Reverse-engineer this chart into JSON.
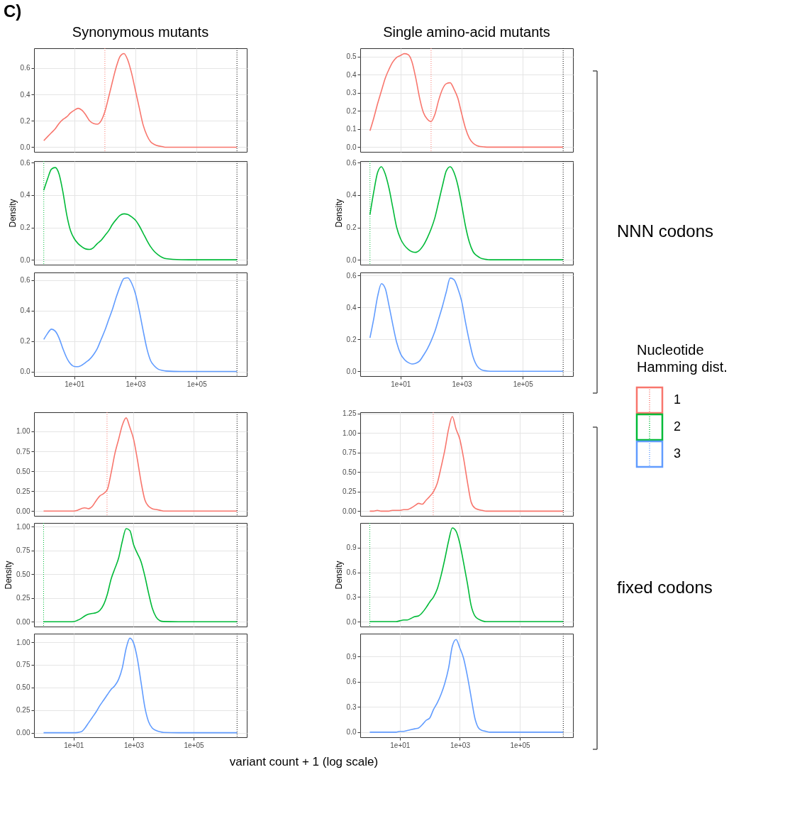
{
  "chart_data": [
    {
      "type": "line",
      "title": "Synonymous mutants",
      "log": "x",
      "grid": true,
      "tick_labels": "y",
      "xlim": [
        0.48,
        4400000
      ],
      "ylim": [
        -0.035,
        0.75
      ],
      "xticks": [
        {
          "value": 10,
          "label": null
        },
        {
          "value": 1000,
          "label": null
        },
        {
          "value": 100000,
          "label": null
        }
      ],
      "yticks": [
        {
          "value": 0,
          "label": "0.0"
        },
        0.2,
        0.4,
        0.6
      ],
      "x": [
        1,
        1.33,
        1.78,
        2.37,
        3.16,
        4.22,
        5.62,
        7.5,
        10,
        13.3,
        17.8,
        23.7,
        31.6,
        42.2,
        56.2,
        75,
        100,
        133,
        178,
        237,
        316,
        422,
        562,
        750,
        1000,
        1330,
        1780,
        2370,
        3160,
        4220,
        5620,
        7500,
        10000,
        31600,
        100000,
        316000,
        1000000,
        2100000
      ],
      "series": [
        {
          "color": "#f8766d",
          "values": [
            0.05,
            0.08,
            0.11,
            0.14,
            0.18,
            0.21,
            0.23,
            0.26,
            0.28,
            0.295,
            0.28,
            0.245,
            0.2,
            0.18,
            0.175,
            0.2,
            0.27,
            0.38,
            0.5,
            0.61,
            0.69,
            0.71,
            0.66,
            0.56,
            0.43,
            0.3,
            0.17,
            0.09,
            0.04,
            0.02,
            0.01,
            0.005,
            0,
            0,
            0,
            0,
            0,
            0
          ]
        }
      ],
      "ref_lines": [
        {
          "axis": "x",
          "value": 100,
          "color": "#f8766d",
          "line_style": "dotted"
        },
        {
          "axis": "x",
          "value": 2100000,
          "color": "#000000",
          "line_style": "dotted"
        }
      ]
    },
    {
      "type": "line",
      "title": "Single amino-acid mutants",
      "log": "x",
      "grid": true,
      "tick_labels": "y",
      "xlim": [
        0.48,
        4400000
      ],
      "ylim": [
        -0.026,
        0.545
      ],
      "xticks": [
        {
          "value": 10,
          "label": null
        },
        {
          "value": 1000,
          "label": null
        },
        {
          "value": 100000,
          "label": null
        }
      ],
      "yticks": [
        {
          "value": 0,
          "label": "0.0"
        },
        0.1,
        0.2,
        0.3,
        0.4,
        0.5
      ],
      "x": [
        1,
        1.33,
        1.78,
        2.37,
        3.16,
        4.22,
        5.62,
        7.5,
        10,
        13.3,
        17.8,
        23.7,
        31.6,
        42.2,
        56.2,
        75,
        100,
        133,
        178,
        237,
        316,
        422,
        562,
        750,
        1000,
        1330,
        1780,
        2370,
        3160,
        4220,
        5620,
        7500,
        10000,
        31600,
        100000,
        316000,
        1000000,
        2100000
      ],
      "series": [
        {
          "color": "#f8766d",
          "values": [
            0.09,
            0.16,
            0.24,
            0.31,
            0.38,
            0.43,
            0.47,
            0.495,
            0.505,
            0.515,
            0.51,
            0.47,
            0.38,
            0.27,
            0.19,
            0.155,
            0.141,
            0.18,
            0.26,
            0.32,
            0.35,
            0.355,
            0.32,
            0.27,
            0.185,
            0.105,
            0.05,
            0.022,
            0.008,
            0.003,
            0.001,
            0,
            0,
            0,
            0,
            0,
            0,
            0
          ]
        }
      ],
      "ref_lines": [
        {
          "axis": "x",
          "value": 100,
          "color": "#f8766d",
          "line_style": "dotted"
        },
        {
          "axis": "x",
          "value": 2100000,
          "color": "#000000",
          "line_style": "dotted"
        }
      ]
    },
    {
      "type": "line",
      "ylabel": "Density",
      "log": "x",
      "grid": true,
      "tick_labels": "y",
      "xlim": [
        0.48,
        4400000
      ],
      "ylim": [
        -0.03,
        0.61
      ],
      "xticks": [
        {
          "value": 10,
          "label": null
        },
        {
          "value": 1000,
          "label": null
        },
        {
          "value": 100000,
          "label": null
        }
      ],
      "yticks": [
        {
          "value": 0,
          "label": "0.0"
        },
        0.2,
        0.4,
        0.6
      ],
      "x": [
        1,
        1.33,
        1.78,
        2.37,
        3.16,
        4.22,
        5.62,
        7.5,
        10,
        13.3,
        17.8,
        23.7,
        31.6,
        42.2,
        56.2,
        75,
        100,
        133,
        178,
        237,
        316,
        422,
        562,
        750,
        1000,
        1330,
        1780,
        2370,
        3160,
        4220,
        5620,
        7500,
        10000,
        31600,
        100000,
        316000,
        1000000,
        2100000
      ],
      "series": [
        {
          "color": "#00ba38",
          "values": [
            0.43,
            0.5,
            0.56,
            0.57,
            0.53,
            0.42,
            0.28,
            0.18,
            0.13,
            0.1,
            0.08,
            0.067,
            0.064,
            0.075,
            0.1,
            0.12,
            0.15,
            0.18,
            0.22,
            0.25,
            0.275,
            0.284,
            0.28,
            0.265,
            0.245,
            0.21,
            0.165,
            0.12,
            0.08,
            0.05,
            0.03,
            0.015,
            0.007,
            0.001,
            0,
            0,
            0,
            0
          ]
        }
      ],
      "ref_lines": [
        {
          "axis": "x",
          "value": 1,
          "color": "#00ba38",
          "line_style": "dotted"
        },
        {
          "axis": "x",
          "value": 2100000,
          "color": "#000000",
          "line_style": "dotted"
        }
      ]
    },
    {
      "type": "line",
      "ylabel": "Density",
      "log": "x",
      "grid": true,
      "tick_labels": "y",
      "xlim": [
        0.48,
        4400000
      ],
      "ylim": [
        -0.03,
        0.61
      ],
      "xticks": [
        {
          "value": 10,
          "label": null
        },
        {
          "value": 1000,
          "label": null
        },
        {
          "value": 100000,
          "label": null
        }
      ],
      "yticks": [
        {
          "value": 0,
          "label": "0.0"
        },
        0.2,
        0.4,
        0.6
      ],
      "x": [
        1,
        1.33,
        1.78,
        2.37,
        3.16,
        4.22,
        5.62,
        7.5,
        10,
        13.3,
        17.8,
        23.7,
        31.6,
        42.2,
        56.2,
        75,
        100,
        133,
        178,
        237,
        316,
        422,
        562,
        750,
        1000,
        1330,
        1780,
        2370,
        3160,
        4220,
        5620,
        7500,
        10000,
        31600,
        100000,
        316000,
        1000000,
        2100000
      ],
      "series": [
        {
          "color": "#00ba38",
          "values": [
            0.28,
            0.42,
            0.54,
            0.575,
            0.53,
            0.44,
            0.32,
            0.2,
            0.13,
            0.09,
            0.065,
            0.05,
            0.046,
            0.06,
            0.09,
            0.135,
            0.19,
            0.26,
            0.36,
            0.46,
            0.55,
            0.575,
            0.54,
            0.46,
            0.34,
            0.21,
            0.11,
            0.05,
            0.025,
            0.01,
            0.004,
            0.001,
            0,
            0,
            0,
            0,
            0,
            0
          ]
        }
      ],
      "ref_lines": [
        {
          "axis": "x",
          "value": 1,
          "color": "#00ba38",
          "line_style": "dotted"
        },
        {
          "axis": "x",
          "value": 2100000,
          "color": "#000000",
          "line_style": "dotted"
        }
      ]
    },
    {
      "type": "line",
      "log": "x",
      "grid": true,
      "xlim": [
        0.48,
        4400000
      ],
      "ylim": [
        -0.03,
        0.65
      ],
      "xticks": [
        {
          "value": 10,
          "label": "1e+01"
        },
        {
          "value": 1000,
          "label": "1e+03"
        },
        {
          "value": 100000,
          "label": "1e+05"
        }
      ],
      "yticks": [
        {
          "value": 0,
          "label": "0.0"
        },
        0.2,
        0.4,
        0.6
      ],
      "x": [
        1,
        1.33,
        1.78,
        2.37,
        3.16,
        4.22,
        5.62,
        7.5,
        10,
        13.3,
        17.8,
        23.7,
        31.6,
        42.2,
        56.2,
        75,
        100,
        133,
        178,
        237,
        316,
        422,
        562,
        750,
        1000,
        1330,
        1780,
        2370,
        3160,
        4220,
        5620,
        7500,
        10000,
        31600,
        100000,
        316000,
        1000000,
        2100000
      ],
      "series": [
        {
          "color": "#619cff",
          "values": [
            0.21,
            0.25,
            0.278,
            0.265,
            0.22,
            0.15,
            0.09,
            0.05,
            0.033,
            0.032,
            0.042,
            0.06,
            0.08,
            0.11,
            0.15,
            0.21,
            0.27,
            0.34,
            0.41,
            0.49,
            0.56,
            0.61,
            0.615,
            0.58,
            0.51,
            0.4,
            0.27,
            0.15,
            0.07,
            0.035,
            0.015,
            0.007,
            0.003,
            0,
            0,
            0,
            0,
            0
          ]
        }
      ],
      "ref_lines": [
        {
          "axis": "x",
          "value": 2100000,
          "color": "#000000",
          "line_style": "dotted"
        }
      ]
    },
    {
      "type": "line",
      "log": "x",
      "grid": true,
      "xlim": [
        0.48,
        4400000
      ],
      "ylim": [
        -0.03,
        0.62
      ],
      "xticks": [
        {
          "value": 10,
          "label": "1e+01"
        },
        {
          "value": 1000,
          "label": "1e+03"
        },
        {
          "value": 100000,
          "label": "1e+05"
        }
      ],
      "yticks": [
        {
          "value": 0,
          "label": "0.0"
        },
        0.2,
        0.4,
        0.6
      ],
      "x": [
        1,
        1.33,
        1.78,
        2.37,
        3.16,
        4.22,
        5.62,
        7.5,
        10,
        13.3,
        17.8,
        23.7,
        31.6,
        42.2,
        56.2,
        75,
        100,
        133,
        178,
        237,
        316,
        422,
        562,
        750,
        1000,
        1330,
        1780,
        2370,
        3160,
        4220,
        5620,
        7500,
        10000,
        31600,
        100000,
        316000,
        1000000,
        2100000
      ],
      "series": [
        {
          "color": "#619cff",
          "values": [
            0.21,
            0.33,
            0.47,
            0.55,
            0.52,
            0.41,
            0.29,
            0.18,
            0.11,
            0.075,
            0.055,
            0.046,
            0.05,
            0.065,
            0.1,
            0.14,
            0.19,
            0.25,
            0.33,
            0.41,
            0.5,
            0.585,
            0.575,
            0.52,
            0.44,
            0.31,
            0.19,
            0.09,
            0.035,
            0.012,
            0.004,
            0.001,
            0,
            0,
            0,
            0,
            0,
            0
          ]
        }
      ],
      "ref_lines": [
        {
          "axis": "x",
          "value": 2100000,
          "color": "#000000",
          "line_style": "dotted"
        }
      ]
    },
    {
      "type": "line",
      "log": "x",
      "grid": true,
      "tick_labels": "y",
      "xlim": [
        0.48,
        5900000
      ],
      "ylim": [
        -0.06,
        1.24
      ],
      "xticks": [
        {
          "value": 10,
          "label": null
        },
        {
          "value": 1000,
          "label": null
        },
        {
          "value": 100000,
          "label": null
        }
      ],
      "yticks": [
        {
          "value": 0,
          "label": "0.00"
        },
        0.25,
        {
          "value": 0.5,
          "label": "0.50"
        },
        0.75,
        {
          "value": 1,
          "label": "1.00"
        }
      ],
      "x": [
        1,
        1.33,
        1.78,
        2.37,
        3.16,
        4.22,
        5.62,
        7.5,
        10,
        13.3,
        17.8,
        23.7,
        31.6,
        42.2,
        56.2,
        75,
        100,
        133,
        178,
        237,
        316,
        422,
        562,
        750,
        1000,
        1330,
        1780,
        2370,
        3160,
        4220,
        5620,
        7500,
        10000,
        31600,
        100000,
        316000,
        1000000,
        2800000
      ],
      "series": [
        {
          "color": "#f8766d",
          "values": [
            0,
            0,
            0,
            0,
            0,
            0,
            0,
            0,
            0,
            0.01,
            0.03,
            0.04,
            0.03,
            0.06,
            0.13,
            0.19,
            0.22,
            0.27,
            0.48,
            0.72,
            0.9,
            1.08,
            1.17,
            1.05,
            0.9,
            0.65,
            0.36,
            0.14,
            0.06,
            0.03,
            0.02,
            0.01,
            0,
            0,
            0,
            0,
            0,
            0
          ]
        }
      ],
      "ref_lines": [
        {
          "axis": "x",
          "value": 130,
          "color": "#f8766d",
          "line_style": "dotted"
        },
        {
          "axis": "x",
          "value": 2800000,
          "color": "#000000",
          "line_style": "dotted"
        }
      ]
    },
    {
      "type": "line",
      "log": "x",
      "grid": true,
      "tick_labels": "y",
      "xlim": [
        0.48,
        5900000
      ],
      "ylim": [
        -0.06,
        1.265
      ],
      "xticks": [
        {
          "value": 10,
          "label": null
        },
        {
          "value": 1000,
          "label": null
        },
        {
          "value": 100000,
          "label": null
        }
      ],
      "yticks": [
        {
          "value": 0,
          "label": "0.00"
        },
        0.25,
        {
          "value": 0.5,
          "label": "0.50"
        },
        0.75,
        {
          "value": 1,
          "label": "1.00"
        },
        1.25
      ],
      "x": [
        1,
        1.33,
        1.78,
        2.37,
        3.16,
        4.22,
        5.62,
        7.5,
        10,
        13.3,
        17.8,
        23.7,
        31.6,
        42.2,
        56.2,
        75,
        100,
        133,
        178,
        237,
        316,
        422,
        562,
        750,
        1000,
        1330,
        1780,
        2370,
        3160,
        4220,
        5620,
        7500,
        10000,
        31600,
        100000,
        316000,
        1000000,
        2800000
      ],
      "series": [
        {
          "color": "#f8766d",
          "values": [
            0,
            0,
            0.01,
            0,
            0,
            0,
            0.01,
            0.01,
            0.01,
            0.02,
            0.02,
            0.04,
            0.07,
            0.1,
            0.09,
            0.14,
            0.19,
            0.25,
            0.36,
            0.56,
            0.78,
            1.05,
            1.21,
            1.05,
            0.92,
            0.68,
            0.38,
            0.12,
            0.04,
            0.02,
            0.01,
            0,
            0,
            0,
            0,
            0,
            0,
            0
          ]
        }
      ],
      "ref_lines": [
        {
          "axis": "x",
          "value": 130,
          "color": "#f8766d",
          "line_style": "dotted"
        },
        {
          "axis": "x",
          "value": 2800000,
          "color": "#000000",
          "line_style": "dotted"
        }
      ]
    },
    {
      "type": "line",
      "ylabel": "Density",
      "log": "x",
      "grid": true,
      "tick_labels": "y",
      "xlim": [
        0.48,
        5900000
      ],
      "ylim": [
        -0.05,
        1.04
      ],
      "xticks": [
        {
          "value": 10,
          "label": null
        },
        {
          "value": 1000,
          "label": null
        },
        {
          "value": 100000,
          "label": null
        }
      ],
      "yticks": [
        {
          "value": 0,
          "label": "0.00"
        },
        0.25,
        {
          "value": 0.5,
          "label": "0.50"
        },
        0.75,
        {
          "value": 1,
          "label": "1.00"
        }
      ],
      "x": [
        1,
        1.33,
        1.78,
        2.37,
        3.16,
        4.22,
        5.62,
        7.5,
        10,
        13.3,
        17.8,
        23.7,
        31.6,
        42.2,
        56.2,
        75,
        100,
        133,
        178,
        237,
        316,
        422,
        562,
        750,
        1000,
        1330,
        1780,
        2370,
        3160,
        4220,
        5620,
        7500,
        10000,
        31600,
        100000,
        316000,
        1000000,
        2800000
      ],
      "series": [
        {
          "color": "#00ba38",
          "values": [
            0,
            0,
            0,
            0,
            0,
            0,
            0,
            0,
            0.002,
            0.015,
            0.035,
            0.062,
            0.08,
            0.088,
            0.095,
            0.12,
            0.18,
            0.29,
            0.45,
            0.56,
            0.67,
            0.85,
            0.98,
            0.96,
            0.81,
            0.72,
            0.63,
            0.48,
            0.3,
            0.14,
            0.05,
            0.012,
            0.003,
            0,
            0,
            0,
            0,
            0
          ]
        }
      ],
      "ref_lines": [
        {
          "axis": "x",
          "value": 1,
          "color": "#00ba38",
          "line_style": "dotted"
        },
        {
          "axis": "x",
          "value": 2800000,
          "color": "#000000",
          "line_style": "dotted"
        }
      ]
    },
    {
      "type": "line",
      "ylabel": "Density",
      "log": "x",
      "grid": true,
      "tick_labels": "y",
      "xlim": [
        0.48,
        5900000
      ],
      "ylim": [
        -0.06,
        1.2
      ],
      "xticks": [
        {
          "value": 10,
          "label": null
        },
        {
          "value": 1000,
          "label": null
        },
        {
          "value": 100000,
          "label": null
        }
      ],
      "yticks": [
        {
          "value": 0,
          "label": "0.0"
        },
        0.3,
        0.6,
        0.9
      ],
      "x": [
        1,
        1.33,
        1.78,
        2.37,
        3.16,
        4.22,
        5.62,
        7.5,
        10,
        13.3,
        17.8,
        23.7,
        31.6,
        42.2,
        56.2,
        75,
        100,
        133,
        178,
        237,
        316,
        422,
        562,
        750,
        1000,
        1330,
        1780,
        2370,
        3160,
        4220,
        5620,
        7500,
        10000,
        31600,
        100000,
        316000,
        1000000,
        2800000
      ],
      "series": [
        {
          "color": "#00ba38",
          "values": [
            0,
            0,
            0,
            0,
            0,
            0,
            0,
            0,
            0.01,
            0.02,
            0.02,
            0.04,
            0.06,
            0.07,
            0.11,
            0.17,
            0.24,
            0.3,
            0.4,
            0.56,
            0.76,
            0.98,
            1.14,
            1.1,
            0.95,
            0.72,
            0.47,
            0.2,
            0.07,
            0.03,
            0.01,
            0,
            0,
            0,
            0,
            0,
            0,
            0
          ]
        }
      ],
      "ref_lines": [
        {
          "axis": "x",
          "value": 1,
          "color": "#00ba38",
          "line_style": "dotted"
        },
        {
          "axis": "x",
          "value": 2800000,
          "color": "#000000",
          "line_style": "dotted"
        }
      ]
    },
    {
      "type": "line",
      "xlabel": "variant count + 1 (log scale)",
      "log": "x",
      "grid": true,
      "xlim": [
        0.48,
        5900000
      ],
      "ylim": [
        -0.05,
        1.095
      ],
      "xticks": [
        {
          "value": 10,
          "label": "1e+01"
        },
        {
          "value": 1000,
          "label": "1e+03"
        },
        {
          "value": 100000,
          "label": "1e+05"
        }
      ],
      "yticks": [
        {
          "value": 0,
          "label": "0.00"
        },
        0.25,
        {
          "value": 0.5,
          "label": "0.50"
        },
        0.75,
        {
          "value": 1,
          "label": "1.00"
        }
      ],
      "x": [
        1,
        1.33,
        1.78,
        2.37,
        3.16,
        4.22,
        5.62,
        7.5,
        10,
        13.3,
        17.8,
        23.7,
        31.6,
        42.2,
        56.2,
        75,
        100,
        133,
        178,
        237,
        316,
        422,
        562,
        750,
        1000,
        1330,
        1780,
        2370,
        3160,
        4220,
        5620,
        7500,
        10000,
        31600,
        100000,
        316000,
        1000000,
        2800000
      ],
      "series": [
        {
          "color": "#619cff",
          "values": [
            0,
            0,
            0,
            0,
            0,
            0,
            0,
            0,
            0,
            0.002,
            0.01,
            0.05,
            0.11,
            0.17,
            0.23,
            0.3,
            0.36,
            0.42,
            0.48,
            0.52,
            0.59,
            0.72,
            0.93,
            1.045,
            0.99,
            0.82,
            0.55,
            0.28,
            0.12,
            0.05,
            0.025,
            0.01,
            0.003,
            0,
            0,
            0,
            0,
            0
          ]
        }
      ],
      "ref_lines": [
        {
          "axis": "x",
          "value": 2800000,
          "color": "#000000",
          "line_style": "dotted"
        }
      ]
    },
    {
      "type": "line",
      "log": "x",
      "grid": true,
      "xlim": [
        0.48,
        5900000
      ],
      "ylim": [
        -0.06,
        1.17
      ],
      "xticks": [
        {
          "value": 10,
          "label": "1e+01"
        },
        {
          "value": 1000,
          "label": "1e+03"
        },
        {
          "value": 100000,
          "label": "1e+05"
        }
      ],
      "yticks": [
        {
          "value": 0,
          "label": "0.0"
        },
        0.3,
        0.6,
        0.9
      ],
      "x": [
        1,
        1.33,
        1.78,
        2.37,
        3.16,
        4.22,
        5.62,
        7.5,
        10,
        13.3,
        17.8,
        23.7,
        31.6,
        42.2,
        56.2,
        75,
        100,
        133,
        178,
        237,
        316,
        422,
        562,
        750,
        1000,
        1330,
        1780,
        2370,
        3160,
        4220,
        5620,
        7500,
        10000,
        31600,
        100000,
        316000,
        1000000,
        2800000
      ],
      "series": [
        {
          "color": "#619cff",
          "values": [
            0,
            0,
            0,
            0,
            0,
            0,
            0,
            0,
            0.01,
            0.01,
            0.02,
            0.03,
            0.04,
            0.05,
            0.09,
            0.14,
            0.17,
            0.27,
            0.35,
            0.45,
            0.58,
            0.76,
            1.02,
            1.1,
            1.0,
            0.88,
            0.67,
            0.42,
            0.17,
            0.05,
            0.02,
            0.01,
            0,
            0,
            0,
            0,
            0,
            0
          ]
        }
      ],
      "ref_lines": [
        {
          "axis": "x",
          "value": 2800000,
          "color": "#000000",
          "line_style": "dotted"
        }
      ]
    },
    {
      "type": "other",
      "legend_title": "Nucleotide Hamming dist.",
      "categories": [
        "1",
        "2",
        "3"
      ],
      "colors": [
        "#f8766d",
        "#00ba38",
        "#619cff"
      ],
      "annotations": [
        "C)",
        "NNN codons",
        "fixed codons"
      ]
    }
  ]
}
